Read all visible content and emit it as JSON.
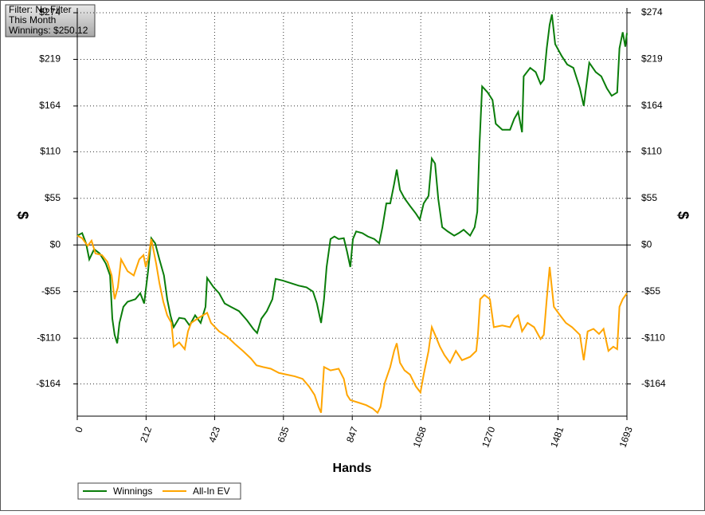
{
  "info": {
    "lines": [
      "Filter: No Filter",
      "This Month",
      "Winnings: $250.12"
    ]
  },
  "chart_data": {
    "type": "line",
    "x_label": "Hands",
    "y_label": "$",
    "xlim": [
      0,
      1693
    ],
    "xticks": [
      0,
      212,
      423,
      635,
      847,
      1058,
      1270,
      1481,
      1693
    ],
    "ylim": [
      -202,
      274
    ],
    "yticks": [
      {
        "value": 274,
        "label": "$274"
      },
      {
        "value": 219,
        "label": "$219"
      },
      {
        "value": 164,
        "label": "$164"
      },
      {
        "value": 110,
        "label": "$110"
      },
      {
        "value": 55,
        "label": "$55"
      },
      {
        "value": 0,
        "label": "$0"
      },
      {
        "value": -55,
        "label": "-$55"
      },
      {
        "value": -110,
        "label": "-$110"
      },
      {
        "value": -164,
        "label": "-$164"
      }
    ],
    "grid": true,
    "legend": "bottom-left",
    "series": [
      {
        "name": "Winnings",
        "color": "#0a7d0a",
        "x": [
          0,
          15,
          27,
          37,
          52,
          69,
          88,
          101,
          108,
          115,
          123,
          130,
          142,
          155,
          179,
          194,
          206,
          218,
          228,
          240,
          253,
          267,
          277,
          287,
          297,
          314,
          331,
          346,
          363,
          380,
          395,
          400,
          420,
          437,
          454,
          473,
          498,
          523,
          542,
          554,
          567,
          584,
          601,
          611,
          633,
          657,
          682,
          706,
          726,
          738,
          751,
          760,
          768,
          780,
          792,
          805,
          821,
          831,
          841,
          849,
          859,
          878,
          895,
          915,
          930,
          940,
          952,
          964,
          976,
          984,
          994,
          1008,
          1025,
          1043,
          1055,
          1067,
          1082,
          1092,
          1102,
          1112,
          1124,
          1141,
          1161,
          1175,
          1190,
          1210,
          1224,
          1232,
          1239,
          1247,
          1264,
          1279,
          1289,
          1309,
          1333,
          1346,
          1358,
          1370,
          1375,
          1395,
          1412,
          1427,
          1437,
          1446,
          1455,
          1462,
          1472,
          1492,
          1509,
          1528,
          1548,
          1560,
          1577,
          1597,
          1614,
          1631,
          1646,
          1663,
          1670,
          1680,
          1688,
          1693
        ],
        "values": [
          11,
          14,
          2,
          -17,
          -5,
          -10,
          -22,
          -36,
          -87,
          -106,
          -116,
          -92,
          -73,
          -67,
          -64,
          -57,
          -69,
          -31,
          8,
          2,
          -17,
          -36,
          -64,
          -83,
          -97,
          -86,
          -87,
          -95,
          -83,
          -92,
          -73,
          -39,
          -50,
          -57,
          -69,
          -73,
          -78,
          -89,
          -99,
          -104,
          -87,
          -78,
          -64,
          -40,
          -42,
          -45,
          -48,
          -50,
          -55,
          -69,
          -92,
          -64,
          -26,
          7,
          10,
          7,
          8,
          -8,
          -26,
          7,
          16,
          14,
          10,
          7,
          2,
          21,
          49,
          49,
          72,
          89,
          65,
          55,
          46,
          37,
          30,
          49,
          58,
          102,
          96,
          54,
          21,
          16,
          11,
          14,
          18,
          11,
          21,
          39,
          119,
          187,
          180,
          171,
          143,
          136,
          136,
          149,
          157,
          133,
          199,
          209,
          204,
          190,
          195,
          232,
          260,
          272,
          237,
          223,
          213,
          209,
          185,
          164,
          215,
          204,
          199,
          185,
          176,
          180,
          232,
          251,
          234,
          250
        ]
      },
      {
        "name": "All-In EV",
        "color": "#ffa500",
        "x": [
          0,
          15,
          32,
          44,
          56,
          76,
          93,
          106,
          115,
          125,
          135,
          155,
          174,
          191,
          204,
          211,
          218,
          228,
          243,
          253,
          265,
          277,
          290,
          297,
          314,
          331,
          341,
          351,
          370,
          387,
          400,
          412,
          437,
          461,
          486,
          510,
          535,
          552,
          572,
          596,
          621,
          645,
          670,
          694,
          714,
          731,
          743,
          751,
          760,
          780,
          805,
          821,
          831,
          841,
          866,
          890,
          910,
          925,
          934,
          947,
          964,
          976,
          984,
          994,
          1008,
          1025,
          1043,
          1057,
          1067,
          1082,
          1092,
          1102,
          1117,
          1131,
          1148,
          1166,
          1185,
          1210,
          1229,
          1234,
          1241,
          1254,
          1271,
          1283,
          1309,
          1333,
          1346,
          1358,
          1370,
          1387,
          1407,
          1427,
          1437,
          1446,
          1455,
          1468,
          1487,
          1505,
          1524,
          1548,
          1560,
          1572,
          1590,
          1607,
          1621,
          1636,
          1651,
          1663,
          1670,
          1680,
          1693
        ],
        "values": [
          11,
          8,
          -1,
          5,
          -10,
          -12,
          -20,
          -36,
          -64,
          -50,
          -17,
          -31,
          -36,
          -17,
          -12,
          -26,
          -17,
          7,
          -22,
          -45,
          -67,
          -83,
          -92,
          -120,
          -115,
          -123,
          -102,
          -92,
          -87,
          -83,
          -80,
          -92,
          -102,
          -108,
          -117,
          -125,
          -134,
          -142,
          -144,
          -146,
          -151,
          -153,
          -155,
          -158,
          -167,
          -177,
          -191,
          -198,
          -144,
          -148,
          -146,
          -158,
          -177,
          -183,
          -186,
          -189,
          -193,
          -198,
          -191,
          -163,
          -144,
          -125,
          -116,
          -139,
          -148,
          -153,
          -167,
          -174,
          -153,
          -125,
          -97,
          -106,
          -120,
          -130,
          -139,
          -125,
          -136,
          -132,
          -125,
          -106,
          -64,
          -59,
          -64,
          -97,
          -95,
          -97,
          -87,
          -83,
          -102,
          -92,
          -97,
          -111,
          -106,
          -64,
          -26,
          -73,
          -83,
          -92,
          -97,
          -106,
          -136,
          -102,
          -99,
          -105,
          -99,
          -125,
          -120,
          -123,
          -73,
          -64,
          -57
        ]
      }
    ]
  }
}
